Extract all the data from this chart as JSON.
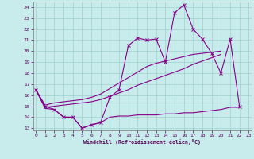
{
  "xlabel": "Windchill (Refroidissement éolien,°C)",
  "xlim": [
    -0.3,
    23.3
  ],
  "ylim": [
    12.8,
    24.5
  ],
  "yticks": [
    13,
    14,
    15,
    16,
    17,
    18,
    19,
    20,
    21,
    22,
    23,
    24
  ],
  "xticks": [
    0,
    1,
    2,
    3,
    4,
    5,
    6,
    7,
    8,
    9,
    10,
    11,
    12,
    13,
    14,
    15,
    16,
    17,
    18,
    19,
    20,
    21,
    22,
    23
  ],
  "bg_color": "#c8ecec",
  "grid_color": "#9fcfcf",
  "line_color": "#880088",
  "line1_x": [
    0,
    1,
    2,
    3,
    4,
    5,
    6,
    7,
    8,
    9,
    10,
    11,
    12,
    13,
    14,
    15,
    16,
    17,
    18,
    19,
    20,
    21,
    22
  ],
  "line1_y": [
    16.5,
    15.0,
    14.7,
    14.0,
    14.0,
    13.0,
    13.3,
    13.5,
    15.8,
    16.5,
    20.5,
    21.2,
    21.0,
    21.1,
    19.0,
    23.5,
    24.2,
    22.0,
    21.1,
    19.8,
    18.0,
    21.1,
    15.0
  ],
  "line2_x": [
    0,
    1,
    2,
    3,
    4,
    5,
    6,
    7,
    8,
    9,
    10,
    11,
    12,
    13,
    14,
    15,
    16,
    17,
    18,
    19,
    20,
    21,
    22
  ],
  "line2_y": [
    16.5,
    15.1,
    15.3,
    15.4,
    15.5,
    15.6,
    15.8,
    16.1,
    16.6,
    17.1,
    17.6,
    18.1,
    18.6,
    18.9,
    19.1,
    19.3,
    19.5,
    19.7,
    19.8,
    19.9,
    20.0,
    21.1,
    15.0
  ],
  "line3_x": [
    0,
    1,
    2,
    3,
    4,
    5,
    6,
    7,
    8,
    9,
    10,
    11,
    12,
    13,
    14,
    15,
    16,
    17,
    18,
    19,
    20,
    21,
    22
  ],
  "line3_y": [
    16.5,
    14.9,
    15.0,
    15.1,
    15.2,
    15.3,
    15.4,
    15.6,
    15.9,
    16.2,
    16.5,
    16.9,
    17.2,
    17.5,
    17.8,
    18.1,
    18.4,
    18.8,
    19.1,
    19.4,
    19.7,
    20.0,
    15.0
  ],
  "line4_x": [
    0,
    1,
    2,
    3,
    4,
    5,
    6,
    7,
    8,
    9,
    10,
    11,
    12,
    13,
    14,
    15,
    16,
    17,
    18,
    19,
    20,
    21,
    22
  ],
  "line4_y": [
    16.5,
    14.8,
    14.7,
    14.0,
    14.0,
    13.0,
    13.3,
    13.5,
    14.0,
    14.1,
    14.1,
    14.2,
    14.2,
    14.2,
    14.3,
    14.3,
    14.4,
    14.4,
    14.5,
    14.6,
    14.7,
    14.9,
    14.9
  ]
}
